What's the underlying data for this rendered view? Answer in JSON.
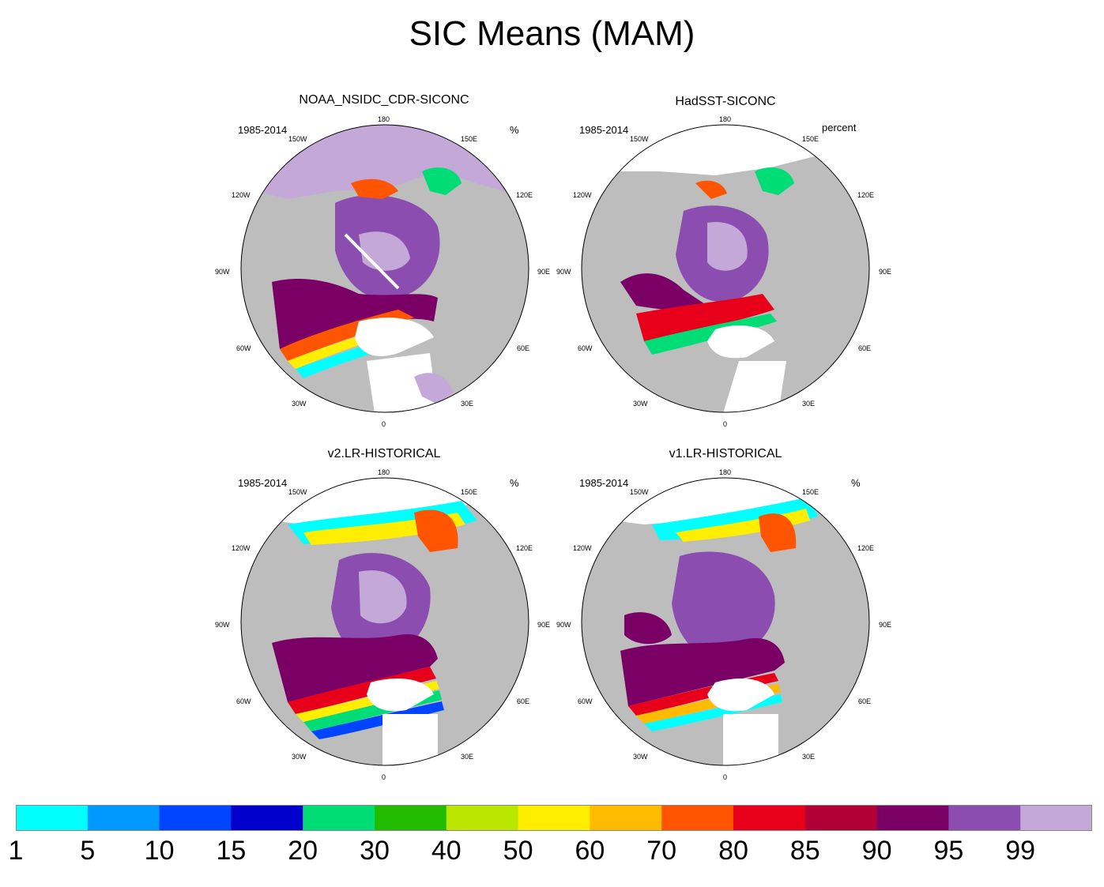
{
  "title": "SIC Means (MAM)",
  "panels": [
    {
      "title": "NOAA_NSIDC_CDR-SICONC",
      "period": "1985-2014",
      "units": "%"
    },
    {
      "title": "HadSST-SICONC",
      "period": "1985-2014",
      "units": "percent"
    },
    {
      "title": "v2.LR-HISTORICAL",
      "period": "1985-2014",
      "units": "%"
    },
    {
      "title": "v1.LR-HISTORICAL",
      "period": "1985-2014",
      "units": "%"
    }
  ],
  "lon_labels": {
    "top": "180",
    "150w": "150W",
    "150e": "150E",
    "120w": "120W",
    "120e": "120E",
    "90w": "90W",
    "90e": "90E",
    "60w": "60W",
    "60e": "60E",
    "30w": "30W",
    "30e": "30E",
    "bottom": "0"
  },
  "colorbar": {
    "labels": [
      "1",
      "5",
      "10",
      "15",
      "20",
      "30",
      "40",
      "50",
      "60",
      "70",
      "80",
      "85",
      "90",
      "95",
      "99"
    ],
    "colors": [
      "#00ffff",
      "#0099ff",
      "#0044ff",
      "#0000cc",
      "#00dd77",
      "#22bb00",
      "#bbe600",
      "#ffee00",
      "#ffbb00",
      "#ff5500",
      "#e8001a",
      "#b00035",
      "#7a0066",
      "#8b4db0",
      "#c4a8d8"
    ]
  },
  "colors": {
    "land": "#bdbdbd",
    "ocean": "#ffffff",
    "coast": "#555555"
  }
}
